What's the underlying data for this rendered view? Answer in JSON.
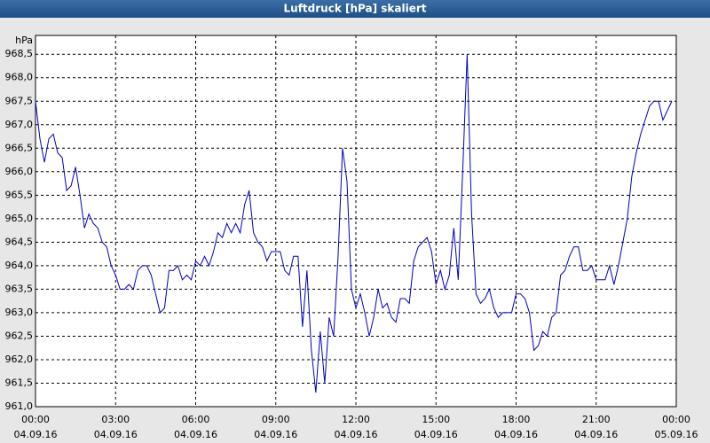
{
  "chart_data": {
    "type": "line",
    "title": "Luftdruck [hPa] skaliert",
    "y_label": "hPa",
    "x": [
      0,
      10,
      20,
      30,
      40,
      50,
      60,
      70,
      80,
      90,
      100,
      110,
      120,
      130,
      140,
      150,
      160,
      170,
      180,
      190,
      200,
      210,
      220,
      230,
      240,
      250,
      260,
      270,
      280,
      290,
      300,
      310,
      320,
      330,
      340,
      350,
      360,
      370,
      380,
      390,
      400,
      410,
      420,
      430,
      440,
      450,
      460,
      470,
      480,
      490,
      500,
      510,
      520,
      530,
      540,
      550,
      560,
      570,
      580,
      590,
      600,
      610,
      620,
      630,
      640,
      650,
      660,
      670,
      680,
      690,
      700,
      710,
      720,
      730,
      740,
      750,
      760,
      770,
      780,
      790,
      800,
      810,
      820,
      830,
      840,
      850,
      860,
      870,
      880,
      890,
      900,
      910,
      920,
      930,
      940,
      950,
      960,
      970,
      980,
      990,
      1000,
      1010,
      1020,
      1030,
      1040,
      1050,
      1060,
      1070,
      1080,
      1090,
      1100,
      1110,
      1120,
      1130,
      1140,
      1150,
      1160,
      1170,
      1180,
      1190,
      1200,
      1210,
      1220,
      1230,
      1240,
      1250,
      1260,
      1270,
      1280,
      1290,
      1300,
      1310,
      1320,
      1330,
      1340,
      1350,
      1360,
      1370,
      1380,
      1390,
      1400,
      1410,
      1420,
      1430
    ],
    "series": [
      {
        "name": "Luftdruck",
        "color": "#0000c0",
        "values": [
          967.5,
          966.7,
          966.2,
          966.7,
          966.8,
          966.4,
          966.3,
          965.6,
          965.7,
          966.1,
          965.5,
          964.8,
          965.1,
          964.9,
          964.8,
          964.5,
          964.4,
          964.0,
          963.8,
          963.5,
          963.5,
          963.6,
          963.5,
          963.9,
          964.0,
          964.0,
          963.8,
          963.4,
          963.0,
          963.1,
          963.9,
          963.9,
          964.0,
          963.7,
          963.8,
          963.7,
          964.1,
          964.0,
          964.2,
          964.0,
          964.3,
          964.7,
          964.6,
          964.9,
          964.7,
          964.9,
          964.7,
          965.3,
          965.6,
          964.7,
          964.5,
          964.4,
          964.1,
          964.3,
          964.3,
          964.3,
          963.9,
          963.8,
          964.2,
          964.2,
          962.7,
          963.9,
          962.2,
          961.3,
          962.6,
          961.5,
          962.9,
          962.5,
          964.2,
          966.5,
          965.8,
          963.5,
          963.1,
          963.4,
          963.0,
          962.5,
          962.9,
          963.5,
          963.1,
          963.2,
          962.9,
          962.8,
          963.3,
          963.3,
          963.2,
          964.1,
          964.4,
          964.5,
          964.6,
          964.3,
          963.6,
          963.9,
          963.5,
          963.8,
          964.8,
          963.7,
          966.0,
          968.5,
          965.1,
          963.4,
          963.2,
          963.3,
          963.5,
          963.1,
          962.9,
          963.0,
          963.0,
          963.0,
          963.4,
          963.4,
          963.3,
          963.0,
          962.2,
          962.3,
          962.6,
          962.5,
          962.9,
          963.0,
          963.8,
          963.9,
          964.2,
          964.4,
          964.4,
          963.9,
          963.9,
          964.0,
          963.7,
          963.7,
          963.7,
          964.0,
          963.6,
          964.0,
          964.5,
          965.0,
          965.9,
          966.4,
          966.8,
          967.1,
          967.4,
          967.5,
          967.5,
          967.1,
          967.3,
          967.5
        ]
      }
    ],
    "xlim": [
      0,
      1440
    ],
    "xticks": [
      {
        "value": 0,
        "label": "00:00",
        "date": "04.09.16"
      },
      {
        "value": 180,
        "label": "03:00",
        "date": "04.09.16"
      },
      {
        "value": 360,
        "label": "06:00",
        "date": "04.09.16"
      },
      {
        "value": 540,
        "label": "09:00",
        "date": "04.09.16"
      },
      {
        "value": 720,
        "label": "12:00",
        "date": "04.09.16"
      },
      {
        "value": 900,
        "label": "15:00",
        "date": "04.09.16"
      },
      {
        "value": 1080,
        "label": "18:00",
        "date": "04.09.16"
      },
      {
        "value": 1260,
        "label": "21:00",
        "date": "04.09.16"
      },
      {
        "value": 1440,
        "label": "00:00",
        "date": "05.09.16"
      }
    ],
    "ylim": [
      961,
      968.9
    ],
    "yticks": [
      {
        "value": 961,
        "label": "961,0"
      },
      {
        "value": 961.5,
        "label": "961,5"
      },
      {
        "value": 962,
        "label": "962,0"
      },
      {
        "value": 962.5,
        "label": "962,5"
      },
      {
        "value": 963,
        "label": "963,0"
      },
      {
        "value": 963.5,
        "label": "963,5"
      },
      {
        "value": 964,
        "label": "964,0"
      },
      {
        "value": 964.5,
        "label": "964,5"
      },
      {
        "value": 965,
        "label": "965,0"
      },
      {
        "value": 965.5,
        "label": "965,5"
      },
      {
        "value": 966,
        "label": "966,0"
      },
      {
        "value": 966.5,
        "label": "966,5"
      },
      {
        "value": 967,
        "label": "967,0"
      },
      {
        "value": 967.5,
        "label": "967,5"
      },
      {
        "value": 968,
        "label": "968,0"
      },
      {
        "value": 968.5,
        "label": "968,5"
      }
    ],
    "grid": true
  }
}
